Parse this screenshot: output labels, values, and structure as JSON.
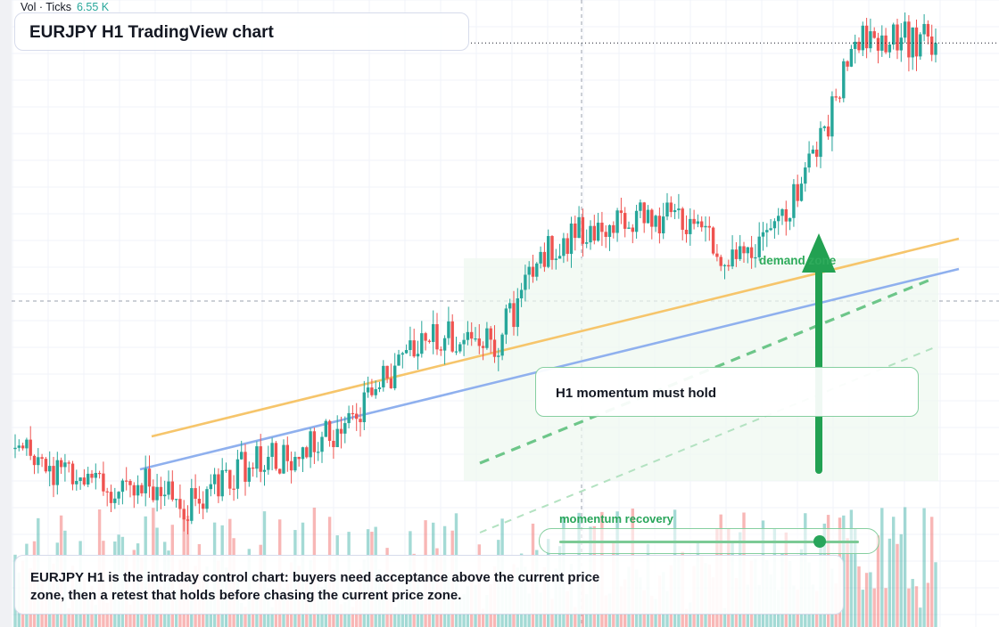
{
  "window": {
    "title": "EURJPY H1 TradingView chart"
  },
  "legend": {
    "indicator": "Vol · Ticks",
    "value": "6.55 K"
  },
  "annotations": {
    "note": "H1 momentum must hold",
    "zone_label": "demand zone",
    "slider_label": "momentum recovery",
    "caption": "EURJPY H1 is the intraday control chart: buyers need acceptance above the current price zone, then a retest that holds before chasing the current price zone."
  },
  "slider": {
    "level": 0.87
  },
  "colors": {
    "up": "#26a69a",
    "down": "#ef5350",
    "accent": "#22a152",
    "trendline_orange": "#f6c56b",
    "trendline_blue": "#8fb0ee"
  },
  "chart_data": {
    "type": "candlestick",
    "symbol": "EURJPY",
    "timeframe": "H1",
    "seed": 20240611,
    "start_price": 152.0,
    "path": [
      [
        0,
        152.0
      ],
      [
        20,
        149.5
      ],
      [
        40,
        150.0
      ],
      [
        45,
        148.5
      ],
      [
        60,
        151.0
      ],
      [
        75,
        151.6
      ],
      [
        85,
        153.5
      ],
      [
        110,
        159.0
      ],
      [
        125,
        158.2
      ],
      [
        140,
        164.5
      ],
      [
        170,
        166.2
      ],
      [
        190,
        163.0
      ],
      [
        205,
        167.5
      ],
      [
        220,
        177.0
      ],
      [
        240,
        176.5
      ]
    ],
    "volume": {
      "indicator": "Vol",
      "units": "Ticks",
      "last": "6.55 K"
    }
  }
}
